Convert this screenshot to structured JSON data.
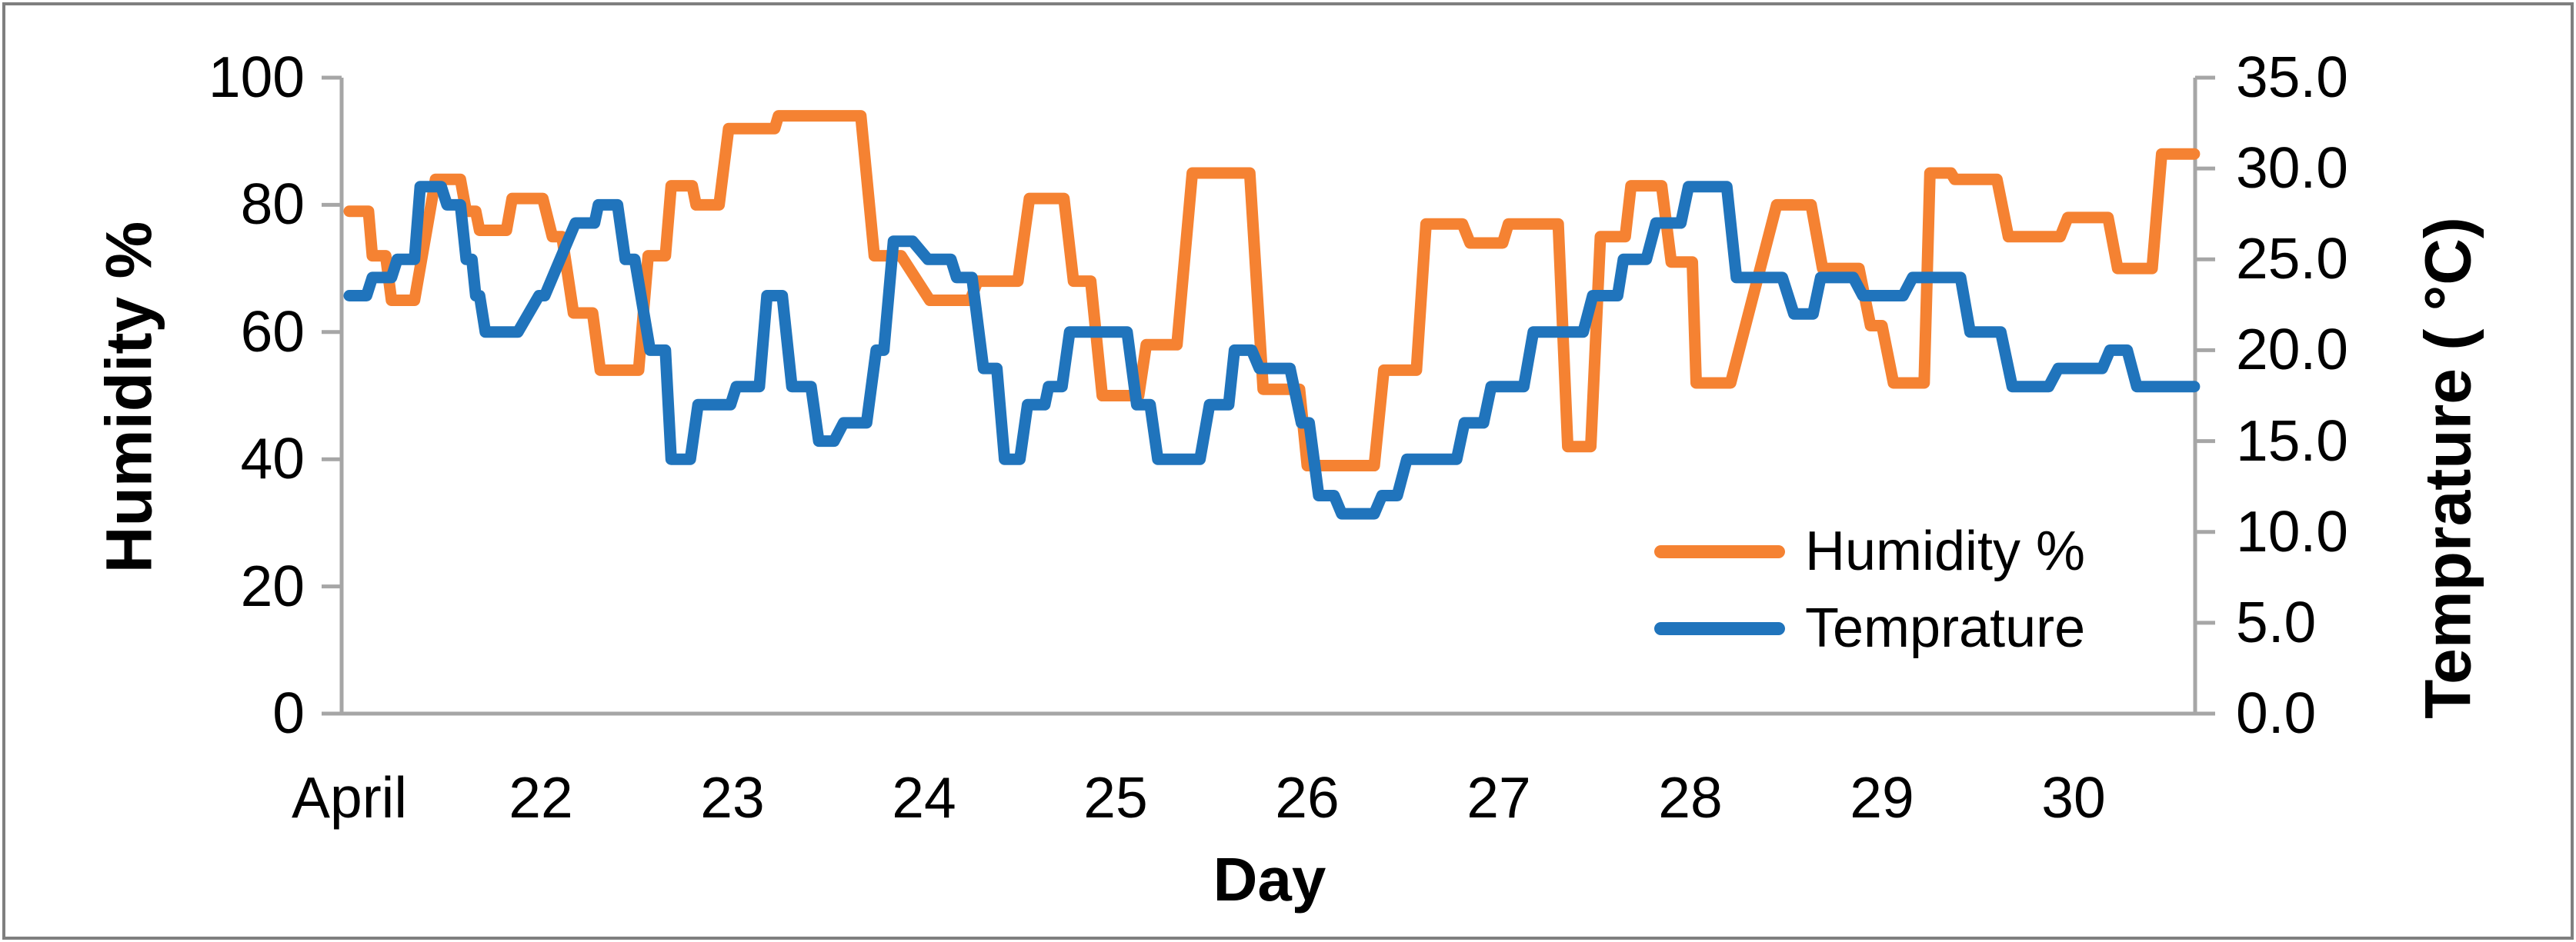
{
  "chart_data": {
    "type": "line",
    "title": "",
    "xlabel": "Day",
    "ylabel_left": "Humidity %",
    "ylabel_right": "Temprature ( °C)",
    "x_axis": {
      "tick_labels": [
        "April",
        "22",
        "23",
        "24",
        "25",
        "26",
        "27",
        "28",
        "29",
        "30"
      ],
      "meaning": "days of April, first label April = April 21",
      "range_days_from_april21": [
        0,
        9.63
      ]
    },
    "y_left": {
      "ticks": [
        0,
        20,
        40,
        60,
        80,
        100
      ],
      "range": [
        0,
        100
      ],
      "grid": false
    },
    "y_right": {
      "ticks": [
        "0.0",
        "5.0",
        "10.0",
        "15.0",
        "20.0",
        "25.0",
        "30.0",
        "35.0"
      ],
      "range": [
        0,
        35
      ],
      "grid": false
    },
    "legend": {
      "position": "middle-right",
      "entries": [
        "Humidity %",
        "Temprature"
      ]
    },
    "segment_format": "[start_day_offset_from_April21, end_day_offset, value] plateaus; consecutive plateaus are joined by short ramps",
    "series": [
      {
        "name": "Humidity %",
        "axis": "left",
        "color": "#F58232",
        "segments": [
          [
            0.0,
            0.1,
            79
          ],
          [
            0.12,
            0.19,
            72
          ],
          [
            0.22,
            0.34,
            65
          ],
          [
            0.45,
            0.58,
            84
          ],
          [
            0.61,
            0.66,
            79
          ],
          [
            0.68,
            0.82,
            76
          ],
          [
            0.85,
            1.01,
            81
          ],
          [
            1.06,
            1.11,
            75
          ],
          [
            1.17,
            1.27,
            63
          ],
          [
            1.31,
            1.51,
            54
          ],
          [
            1.56,
            1.65,
            72
          ],
          [
            1.68,
            1.79,
            83
          ],
          [
            1.81,
            1.93,
            80
          ],
          [
            1.98,
            2.22,
            92
          ],
          [
            2.24,
            2.67,
            94
          ],
          [
            2.74,
            2.88,
            72
          ],
          [
            3.03,
            3.24,
            65
          ],
          [
            3.28,
            3.49,
            68
          ],
          [
            3.55,
            3.73,
            81
          ],
          [
            3.78,
            3.87,
            68
          ],
          [
            3.93,
            4.12,
            50
          ],
          [
            4.16,
            4.32,
            58
          ],
          [
            4.4,
            4.7,
            85
          ],
          [
            4.77,
            4.96,
            51
          ],
          [
            5.0,
            5.35,
            39
          ],
          [
            5.4,
            5.57,
            54
          ],
          [
            5.62,
            5.81,
            77
          ],
          [
            5.85,
            6.02,
            74
          ],
          [
            6.05,
            6.31,
            77
          ],
          [
            6.36,
            6.48,
            42
          ],
          [
            6.53,
            6.66,
            75
          ],
          [
            6.69,
            6.85,
            83
          ],
          [
            6.9,
            7.01,
            71
          ],
          [
            7.03,
            7.21,
            52
          ],
          [
            7.45,
            7.63,
            80
          ],
          [
            7.69,
            7.88,
            70
          ],
          [
            7.94,
            8.0,
            61
          ],
          [
            8.06,
            8.22,
            52
          ],
          [
            8.25,
            8.36,
            85
          ],
          [
            8.38,
            8.6,
            84
          ],
          [
            8.66,
            8.93,
            75
          ],
          [
            8.97,
            9.18,
            78
          ],
          [
            9.23,
            9.41,
            70
          ],
          [
            9.46,
            9.63,
            88
          ]
        ]
      },
      {
        "name": "Temprature",
        "axis": "right",
        "color": "#2074BC",
        "segments": [
          [
            0.0,
            0.09,
            23
          ],
          [
            0.12,
            0.22,
            24
          ],
          [
            0.25,
            0.34,
            25
          ],
          [
            0.37,
            0.48,
            29
          ],
          [
            0.51,
            0.58,
            28
          ],
          [
            0.61,
            0.64,
            25
          ],
          [
            0.66,
            0.68,
            23
          ],
          [
            0.71,
            0.88,
            21
          ],
          [
            0.99,
            1.02,
            23
          ],
          [
            1.18,
            1.28,
            27
          ],
          [
            1.3,
            1.4,
            28
          ],
          [
            1.44,
            1.49,
            25
          ],
          [
            1.57,
            1.65,
            20
          ],
          [
            1.68,
            1.78,
            14
          ],
          [
            1.82,
            1.99,
            17
          ],
          [
            2.02,
            2.14,
            18
          ],
          [
            2.18,
            2.26,
            23
          ],
          [
            2.31,
            2.41,
            18
          ],
          [
            2.45,
            2.53,
            15
          ],
          [
            2.58,
            2.7,
            16
          ],
          [
            2.75,
            2.79,
            20
          ],
          [
            2.84,
            2.94,
            26
          ],
          [
            3.02,
            3.14,
            25
          ],
          [
            3.17,
            3.25,
            24
          ],
          [
            3.31,
            3.38,
            19
          ],
          [
            3.42,
            3.5,
            14
          ],
          [
            3.54,
            3.63,
            17
          ],
          [
            3.65,
            3.72,
            18
          ],
          [
            3.76,
            4.06,
            21
          ],
          [
            4.11,
            4.18,
            17
          ],
          [
            4.22,
            4.44,
            14
          ],
          [
            4.49,
            4.59,
            17
          ],
          [
            4.62,
            4.71,
            20
          ],
          [
            4.75,
            4.91,
            19
          ],
          [
            4.97,
            5.01,
            16
          ],
          [
            5.06,
            5.14,
            12
          ],
          [
            5.18,
            5.35,
            11
          ],
          [
            5.39,
            5.47,
            12
          ],
          [
            5.52,
            5.78,
            14
          ],
          [
            5.82,
            5.92,
            16
          ],
          [
            5.96,
            6.13,
            18
          ],
          [
            6.18,
            6.44,
            21
          ],
          [
            6.49,
            6.62,
            23
          ],
          [
            6.65,
            6.77,
            25
          ],
          [
            6.82,
            6.95,
            27
          ],
          [
            6.99,
            7.19,
            29
          ],
          [
            7.24,
            7.48,
            24
          ],
          [
            7.54,
            7.64,
            22
          ],
          [
            7.68,
            7.85,
            24
          ],
          [
            7.9,
            8.11,
            23
          ],
          [
            8.16,
            8.41,
            24
          ],
          [
            8.46,
            8.62,
            21
          ],
          [
            8.68,
            8.87,
            18
          ],
          [
            8.92,
            9.15,
            19
          ],
          [
            9.19,
            9.28,
            20
          ],
          [
            9.33,
            9.63,
            18
          ]
        ]
      }
    ],
    "colors": {
      "axis_gray": "#A6A6A6",
      "frame_gray": "#7F7F7F",
      "text": "#000000"
    }
  }
}
